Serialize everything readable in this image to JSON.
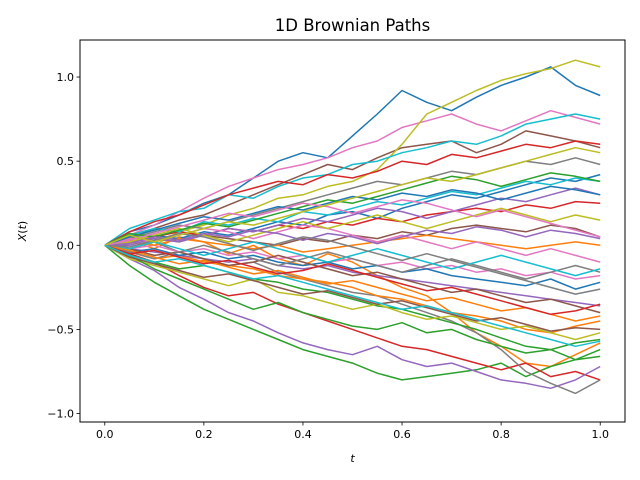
{
  "chart_data": {
    "type": "line",
    "title": "1D Brownian Paths",
    "xlabel": "t",
    "ylabel_base": "X",
    "ylabel_arg": "t",
    "xlim": [
      -0.05,
      1.05
    ],
    "ylim": [
      -1.05,
      1.22
    ],
    "xticks": [
      0.0,
      0.2,
      0.4,
      0.6,
      0.8,
      1.0
    ],
    "xtick_labels": [
      "0.0",
      "0.2",
      "0.4",
      "0.6",
      "0.8",
      "1.0"
    ],
    "yticks": [
      -1.0,
      -0.5,
      0.0,
      0.5,
      1.0
    ],
    "ytick_labels": [
      "−1.0",
      "−0.5",
      "0.0",
      "0.5",
      "1.0"
    ],
    "grid": false,
    "palette": [
      "#1f77b4",
      "#ff7f0e",
      "#2ca02c",
      "#d62728",
      "#9467bd",
      "#8c564b",
      "#e377c2",
      "#7f7f7f",
      "#bcbd22",
      "#17becf"
    ],
    "x": [
      0.0,
      0.05,
      0.1,
      0.15,
      0.2,
      0.25,
      0.3,
      0.35,
      0.4,
      0.45,
      0.5,
      0.55,
      0.6,
      0.65,
      0.7,
      0.75,
      0.8,
      0.85,
      0.9,
      0.95,
      1.0
    ],
    "series": [
      {
        "values": [
          0.0,
          0.08,
          0.12,
          0.18,
          0.25,
          0.3,
          0.4,
          0.5,
          0.55,
          0.52,
          0.65,
          0.78,
          0.92,
          0.85,
          0.8,
          0.88,
          0.95,
          1.0,
          1.06,
          0.95,
          0.89
        ]
      },
      {
        "values": [
          0.0,
          0.03,
          -0.02,
          0.05,
          0.02,
          -0.05,
          0.0,
          -0.08,
          -0.12,
          -0.05,
          -0.1,
          -0.18,
          -0.25,
          -0.3,
          -0.4,
          -0.52,
          -0.6,
          -0.7,
          -0.72,
          -0.65,
          -0.58
        ]
      },
      {
        "values": [
          0.0,
          -0.12,
          -0.22,
          -0.3,
          -0.38,
          -0.44,
          -0.5,
          -0.56,
          -0.62,
          -0.66,
          -0.7,
          -0.76,
          -0.8,
          -0.78,
          -0.76,
          -0.74,
          -0.7,
          -0.78,
          -0.72,
          -0.68,
          -0.62
        ]
      },
      {
        "values": [
          0.0,
          -0.05,
          -0.1,
          -0.18,
          -0.25,
          -0.3,
          -0.28,
          -0.35,
          -0.4,
          -0.45,
          -0.5,
          -0.55,
          -0.6,
          -0.62,
          -0.66,
          -0.7,
          -0.74,
          -0.7,
          -0.78,
          -0.75,
          -0.8
        ]
      },
      {
        "values": [
          0.0,
          -0.08,
          -0.15,
          -0.25,
          -0.32,
          -0.4,
          -0.45,
          -0.52,
          -0.58,
          -0.62,
          -0.65,
          -0.6,
          -0.68,
          -0.72,
          -0.7,
          -0.75,
          -0.8,
          -0.82,
          -0.85,
          -0.8,
          -0.72
        ]
      },
      {
        "values": [
          0.0,
          0.04,
          0.1,
          0.15,
          0.18,
          0.24,
          0.3,
          0.36,
          0.42,
          0.48,
          0.45,
          0.52,
          0.58,
          0.6,
          0.62,
          0.55,
          0.6,
          0.68,
          0.65,
          0.62,
          0.58
        ]
      },
      {
        "values": [
          0.0,
          0.06,
          0.12,
          0.2,
          0.28,
          0.35,
          0.4,
          0.45,
          0.48,
          0.52,
          0.58,
          0.62,
          0.7,
          0.74,
          0.78,
          0.72,
          0.68,
          0.74,
          0.8,
          0.76,
          0.72
        ]
      },
      {
        "values": [
          0.0,
          -0.02,
          0.02,
          -0.04,
          -0.08,
          -0.12,
          -0.1,
          -0.16,
          -0.2,
          -0.24,
          -0.28,
          -0.3,
          -0.35,
          -0.4,
          -0.45,
          -0.52,
          -0.62,
          -0.75,
          -0.82,
          -0.88,
          -0.8
        ]
      },
      {
        "values": [
          0.0,
          0.05,
          0.0,
          0.08,
          0.12,
          0.18,
          0.22,
          0.28,
          0.3,
          0.35,
          0.38,
          0.45,
          0.6,
          0.78,
          0.85,
          0.92,
          0.98,
          1.02,
          1.05,
          1.1,
          1.06
        ]
      },
      {
        "values": [
          0.0,
          0.1,
          0.15,
          0.2,
          0.22,
          0.3,
          0.28,
          0.35,
          0.4,
          0.42,
          0.48,
          0.5,
          0.55,
          0.58,
          0.62,
          0.6,
          0.65,
          0.72,
          0.75,
          0.78,
          0.75
        ]
      },
      {
        "values": [
          0.0,
          0.02,
          0.06,
          0.04,
          0.08,
          0.06,
          0.1,
          0.14,
          0.12,
          0.18,
          0.2,
          0.16,
          0.22,
          0.26,
          0.3,
          0.28,
          0.32,
          0.36,
          0.4,
          0.38,
          0.42
        ]
      },
      {
        "values": [
          0.0,
          -0.04,
          -0.08,
          -0.06,
          -0.1,
          -0.12,
          -0.14,
          -0.18,
          -0.2,
          -0.22,
          -0.25,
          -0.3,
          -0.32,
          -0.36,
          -0.4,
          -0.42,
          -0.45,
          -0.5,
          -0.52,
          -0.48,
          -0.45
        ]
      },
      {
        "values": [
          0.0,
          -0.06,
          -0.1,
          -0.14,
          -0.12,
          -0.16,
          -0.2,
          -0.22,
          -0.26,
          -0.28,
          -0.32,
          -0.36,
          -0.38,
          -0.42,
          -0.46,
          -0.5,
          -0.55,
          -0.6,
          -0.62,
          -0.58,
          -0.56
        ]
      },
      {
        "values": [
          0.0,
          0.03,
          0.05,
          0.08,
          0.06,
          0.1,
          0.08,
          0.12,
          0.1,
          0.14,
          0.12,
          0.16,
          0.14,
          0.18,
          0.2,
          0.22,
          0.2,
          0.24,
          0.22,
          0.26,
          0.25
        ]
      },
      {
        "values": [
          0.0,
          -0.02,
          -0.04,
          -0.06,
          -0.08,
          -0.1,
          -0.08,
          -0.12,
          -0.14,
          -0.12,
          -0.16,
          -0.18,
          -0.2,
          -0.22,
          -0.24,
          -0.26,
          -0.28,
          -0.3,
          -0.32,
          -0.34,
          -0.36
        ]
      },
      {
        "values": [
          0.0,
          0.02,
          0.04,
          0.02,
          0.06,
          0.04,
          0.02,
          0.0,
          0.04,
          0.02,
          0.06,
          0.04,
          0.08,
          0.06,
          0.1,
          0.12,
          0.1,
          0.08,
          0.12,
          0.1,
          0.05
        ]
      },
      {
        "values": [
          0.0,
          -0.02,
          0.0,
          -0.04,
          -0.02,
          -0.06,
          -0.04,
          -0.08,
          -0.06,
          -0.1,
          -0.08,
          -0.12,
          -0.1,
          -0.14,
          -0.12,
          -0.16,
          -0.14,
          -0.18,
          -0.16,
          -0.2,
          -0.18
        ]
      },
      {
        "values": [
          0.0,
          0.04,
          0.08,
          0.12,
          0.1,
          0.14,
          0.18,
          0.22,
          0.26,
          0.3,
          0.34,
          0.38,
          0.36,
          0.4,
          0.44,
          0.42,
          0.46,
          0.5,
          0.48,
          0.52,
          0.48
        ]
      },
      {
        "values": [
          0.0,
          -0.08,
          -0.12,
          -0.16,
          -0.2,
          -0.24,
          -0.2,
          -0.28,
          -0.3,
          -0.34,
          -0.38,
          -0.35,
          -0.4,
          -0.44,
          -0.42,
          -0.46,
          -0.5,
          -0.48,
          -0.52,
          -0.56,
          -0.52
        ]
      },
      {
        "values": [
          0.0,
          0.06,
          0.1,
          0.08,
          0.14,
          0.12,
          0.16,
          0.14,
          0.2,
          0.18,
          0.22,
          0.26,
          0.24,
          0.28,
          0.32,
          0.3,
          0.34,
          0.38,
          0.36,
          0.4,
          0.38
        ]
      },
      {
        "values": [
          0.0,
          -0.04,
          -0.02,
          -0.06,
          -0.04,
          -0.08,
          -0.06,
          -0.1,
          -0.12,
          -0.1,
          -0.14,
          -0.12,
          -0.16,
          -0.14,
          -0.18,
          -0.2,
          -0.22,
          -0.24,
          -0.2,
          -0.26,
          -0.22
        ]
      },
      {
        "values": [
          0.0,
          0.02,
          0.0,
          0.04,
          0.02,
          0.0,
          -0.02,
          0.0,
          -0.04,
          -0.02,
          0.0,
          0.02,
          0.04,
          0.06,
          0.04,
          0.02,
          0.0,
          -0.02,
          0.0,
          0.02,
          0.0
        ]
      },
      {
        "values": [
          0.0,
          -0.06,
          -0.14,
          -0.2,
          -0.26,
          -0.32,
          -0.38,
          -0.34,
          -0.4,
          -0.44,
          -0.48,
          -0.5,
          -0.46,
          -0.52,
          -0.5,
          -0.56,
          -0.6,
          -0.64,
          -0.62,
          -0.68,
          -0.66
        ]
      },
      {
        "values": [
          0.0,
          0.08,
          0.14,
          0.18,
          0.24,
          0.3,
          0.34,
          0.38,
          0.36,
          0.42,
          0.4,
          0.44,
          0.5,
          0.48,
          0.54,
          0.52,
          0.56,
          0.6,
          0.58,
          0.62,
          0.6
        ]
      },
      {
        "values": [
          0.0,
          0.0,
          0.04,
          0.02,
          0.06,
          0.1,
          0.08,
          0.12,
          0.16,
          0.14,
          0.18,
          0.22,
          0.2,
          0.16,
          0.2,
          0.24,
          0.28,
          0.26,
          0.3,
          0.34,
          0.3
        ]
      },
      {
        "values": [
          0.0,
          -0.02,
          -0.06,
          -0.04,
          -0.08,
          -0.12,
          -0.1,
          -0.06,
          -0.1,
          -0.14,
          -0.18,
          -0.16,
          -0.2,
          -0.24,
          -0.28,
          -0.26,
          -0.3,
          -0.34,
          -0.32,
          -0.36,
          -0.4
        ]
      },
      {
        "values": [
          0.0,
          0.04,
          0.02,
          0.06,
          0.1,
          0.08,
          0.04,
          0.08,
          0.12,
          0.1,
          0.06,
          0.02,
          0.06,
          0.02,
          -0.02,
          0.02,
          -0.02,
          -0.06,
          -0.02,
          -0.06,
          -0.1
        ]
      },
      {
        "values": [
          0.0,
          -0.04,
          -0.08,
          -0.04,
          0.0,
          -0.04,
          -0.08,
          -0.12,
          -0.08,
          -0.04,
          -0.08,
          -0.12,
          -0.16,
          -0.12,
          -0.08,
          -0.12,
          -0.16,
          -0.2,
          -0.16,
          -0.12,
          -0.16
        ]
      },
      {
        "values": [
          0.0,
          0.02,
          0.06,
          0.1,
          0.06,
          0.02,
          0.06,
          0.1,
          0.14,
          0.1,
          0.14,
          0.18,
          0.14,
          0.1,
          0.14,
          0.18,
          0.22,
          0.18,
          0.14,
          0.18,
          0.15
        ]
      },
      {
        "values": [
          0.0,
          -0.02,
          0.02,
          -0.02,
          -0.06,
          -0.02,
          0.02,
          -0.02,
          -0.06,
          -0.1,
          -0.06,
          -0.02,
          -0.06,
          -0.1,
          -0.14,
          -0.1,
          -0.06,
          -0.1,
          -0.14,
          -0.18,
          -0.14
        ]
      },
      {
        "values": [
          0.0,
          0.05,
          0.09,
          0.13,
          0.17,
          0.15,
          0.19,
          0.23,
          0.21,
          0.25,
          0.29,
          0.27,
          0.31,
          0.29,
          0.33,
          0.31,
          0.27,
          0.31,
          0.35,
          0.33,
          0.3
        ]
      },
      {
        "values": [
          0.0,
          -0.03,
          -0.07,
          -0.11,
          -0.09,
          -0.13,
          -0.17,
          -0.15,
          -0.19,
          -0.23,
          -0.21,
          -0.25,
          -0.29,
          -0.33,
          -0.31,
          -0.35,
          -0.39,
          -0.37,
          -0.41,
          -0.45,
          -0.42
        ]
      },
      {
        "values": [
          0.0,
          0.07,
          0.05,
          0.09,
          0.13,
          0.11,
          0.15,
          0.19,
          0.23,
          0.27,
          0.25,
          0.29,
          0.33,
          0.37,
          0.41,
          0.39,
          0.35,
          0.39,
          0.43,
          0.41,
          0.38
        ]
      },
      {
        "values": [
          0.0,
          -0.05,
          -0.03,
          -0.07,
          -0.11,
          -0.09,
          -0.13,
          -0.17,
          -0.15,
          -0.11,
          -0.15,
          -0.19,
          -0.23,
          -0.27,
          -0.25,
          -0.29,
          -0.33,
          -0.37,
          -0.41,
          -0.39,
          -0.35
        ]
      },
      {
        "values": [
          0.0,
          0.01,
          0.05,
          0.03,
          0.07,
          0.05,
          0.09,
          0.07,
          0.03,
          0.07,
          0.05,
          0.01,
          0.05,
          0.09,
          0.07,
          0.11,
          0.09,
          0.05,
          0.09,
          0.07,
          0.04
        ]
      },
      {
        "values": [
          0.0,
          -0.07,
          -0.11,
          -0.15,
          -0.19,
          -0.17,
          -0.21,
          -0.25,
          -0.29,
          -0.27,
          -0.31,
          -0.35,
          -0.33,
          -0.37,
          -0.41,
          -0.45,
          -0.43,
          -0.47,
          -0.51,
          -0.49,
          -0.5
        ]
      },
      {
        "values": [
          0.0,
          0.03,
          0.07,
          0.11,
          0.15,
          0.19,
          0.17,
          0.21,
          0.25,
          0.23,
          0.19,
          0.23,
          0.27,
          0.25,
          0.21,
          0.17,
          0.21,
          0.17,
          0.13,
          0.09,
          0.05
        ]
      },
      {
        "values": [
          0.0,
          -0.01,
          0.03,
          0.07,
          0.05,
          0.01,
          -0.03,
          0.01,
          0.05,
          0.03,
          -0.01,
          -0.05,
          -0.09,
          -0.05,
          -0.09,
          -0.13,
          -0.17,
          -0.21,
          -0.25,
          -0.29,
          -0.26
        ]
      },
      {
        "values": [
          0.0,
          0.06,
          0.02,
          0.06,
          0.1,
          0.14,
          0.12,
          0.16,
          0.2,
          0.24,
          0.28,
          0.32,
          0.36,
          0.4,
          0.38,
          0.42,
          0.46,
          0.5,
          0.54,
          0.58,
          0.55
        ]
      },
      {
        "values": [
          0.0,
          -0.06,
          -0.1,
          -0.08,
          -0.12,
          -0.16,
          -0.2,
          -0.18,
          -0.22,
          -0.26,
          -0.3,
          -0.34,
          -0.38,
          -0.36,
          -0.4,
          -0.44,
          -0.48,
          -0.52,
          -0.56,
          -0.6,
          -0.57
        ]
      }
    ]
  }
}
